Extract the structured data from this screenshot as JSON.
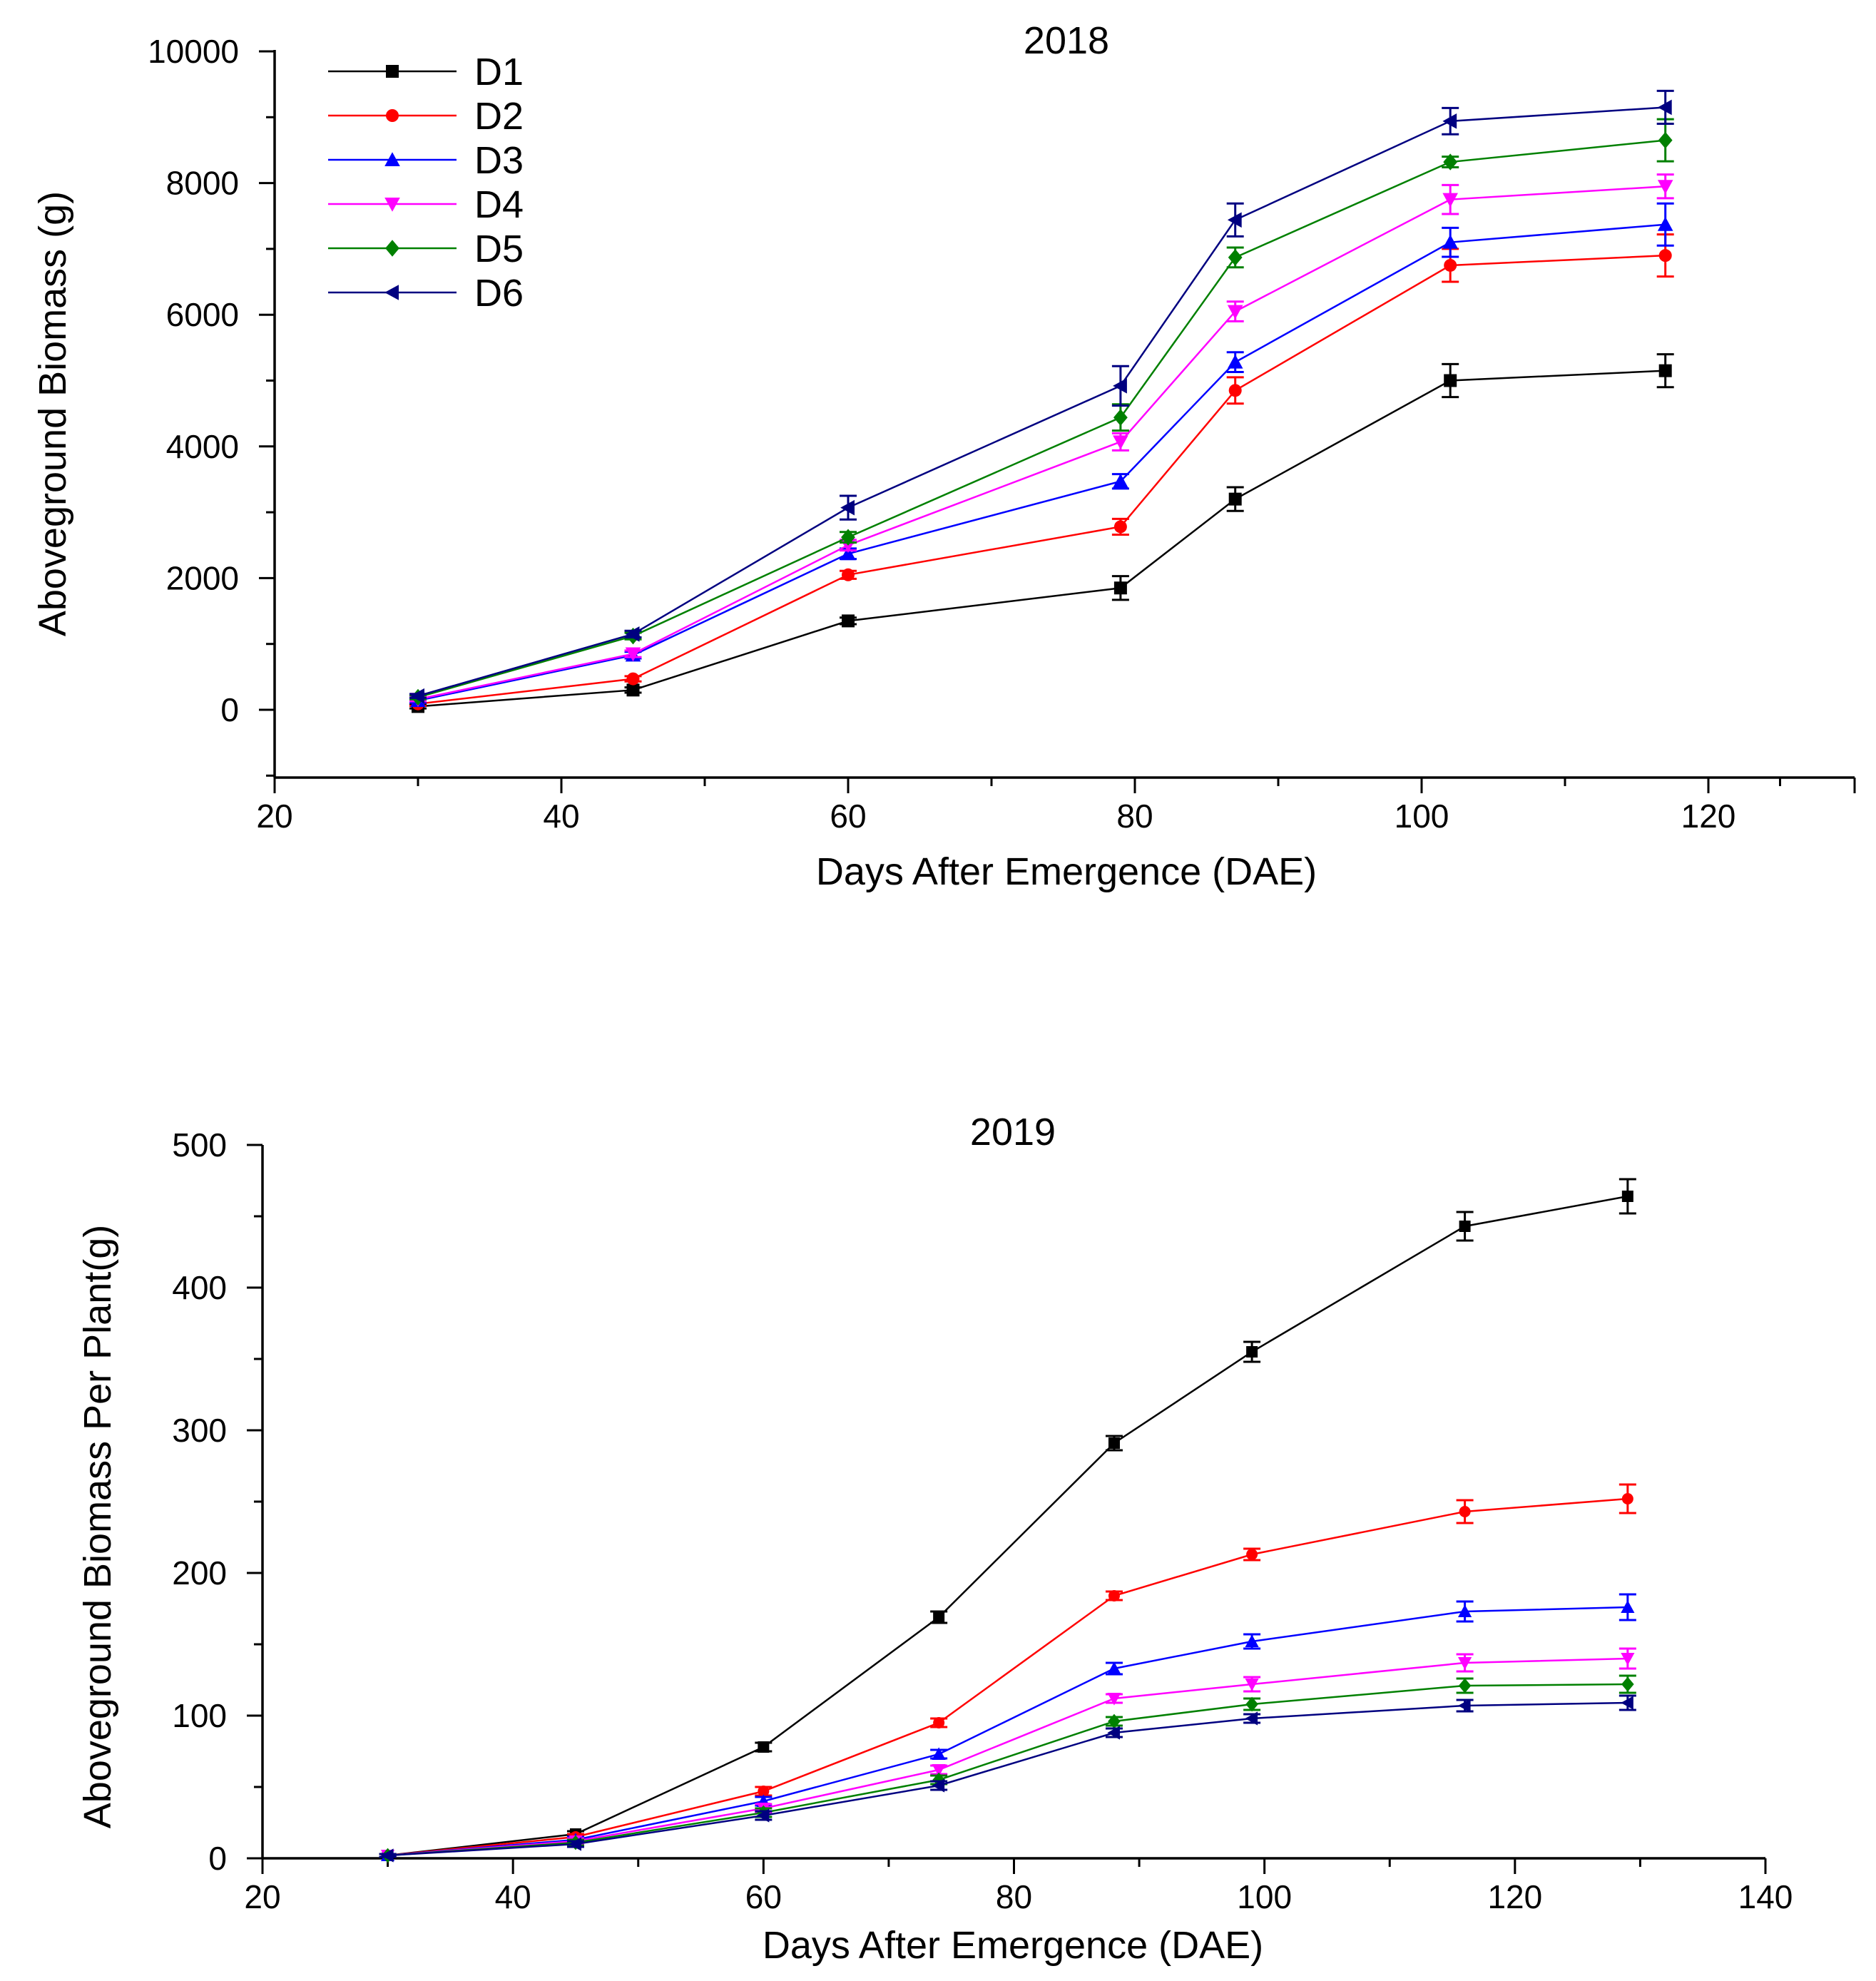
{
  "chart_data": [
    {
      "type": "line",
      "title": "2018",
      "xlabel": "Days After Emergence (DAE)",
      "ylabel": "Aboveground Biomass (g)",
      "xlim": [
        20,
        130
      ],
      "ylim": [
        -1000,
        10000
      ],
      "xticks": [
        20,
        40,
        60,
        80,
        100,
        120
      ],
      "yticks": [
        0,
        2000,
        4000,
        6000,
        8000,
        10000
      ],
      "x": [
        30,
        45,
        60,
        79,
        87,
        102,
        117
      ],
      "legend": "top-left",
      "series": [
        {
          "name": "D1",
          "color": "#000000",
          "marker": "square",
          "values": [
            50,
            300,
            1350,
            1850,
            3200,
            5000,
            5150
          ],
          "errors": [
            30,
            40,
            50,
            180,
            180,
            250,
            250
          ]
        },
        {
          "name": "D2",
          "color": "#ff0000",
          "marker": "circle",
          "values": [
            90,
            470,
            2050,
            2780,
            4850,
            6750,
            6900
          ],
          "errors": [
            30,
            40,
            60,
            120,
            200,
            250,
            320
          ]
        },
        {
          "name": "D3",
          "color": "#0000ff",
          "marker": "triangle-up",
          "values": [
            140,
            830,
            2370,
            3470,
            5280,
            7100,
            7370
          ],
          "errors": [
            30,
            50,
            80,
            110,
            150,
            220,
            320
          ]
        },
        {
          "name": "D4",
          "color": "#ff00ff",
          "marker": "triangle-down",
          "values": [
            160,
            850,
            2500,
            4070,
            6050,
            7750,
            7950
          ],
          "errors": [
            30,
            50,
            80,
            130,
            150,
            220,
            180
          ]
        },
        {
          "name": "D5",
          "color": "#008000",
          "marker": "diamond",
          "values": [
            190,
            1120,
            2620,
            4440,
            6870,
            8320,
            8650
          ],
          "errors": [
            30,
            50,
            80,
            200,
            150,
            80,
            320
          ]
        },
        {
          "name": "D6",
          "color": "#000080",
          "marker": "triangle-left",
          "values": [
            210,
            1150,
            3070,
            4920,
            7440,
            8940,
            9150
          ],
          "errors": [
            30,
            50,
            180,
            300,
            250,
            200,
            250
          ]
        }
      ]
    },
    {
      "type": "line",
      "title": "2019",
      "xlabel": "Days After Emergence (DAE)",
      "ylabel": "Aboveground Biomass Per Plant(g)",
      "xlim": [
        20,
        140
      ],
      "ylim": [
        0,
        500
      ],
      "xticks": [
        20,
        40,
        60,
        80,
        100,
        120,
        140
      ],
      "yticks": [
        0,
        100,
        200,
        300,
        400,
        500
      ],
      "x": [
        30,
        45,
        60,
        74,
        88,
        99,
        116,
        129
      ],
      "series": [
        {
          "color": "#000000",
          "marker": "square",
          "values": [
            2,
            17,
            78,
            169,
            291,
            355,
            443,
            464
          ],
          "errors": [
            1,
            2,
            3,
            4,
            5,
            7,
            10,
            12
          ]
        },
        {
          "color": "#ff0000",
          "marker": "circle",
          "values": [
            2,
            15,
            47,
            95,
            184,
            213,
            243,
            252
          ],
          "errors": [
            1,
            2,
            3,
            3,
            3,
            4,
            8,
            10
          ]
        },
        {
          "color": "#0000ff",
          "marker": "triangle-up",
          "values": [
            2,
            13,
            40,
            73,
            133,
            152,
            173,
            176
          ],
          "errors": [
            1,
            2,
            3,
            3,
            4,
            5,
            7,
            9
          ]
        },
        {
          "color": "#ff00ff",
          "marker": "triangle-down",
          "values": [
            2,
            12,
            35,
            62,
            112,
            122,
            137,
            140
          ],
          "errors": [
            1,
            2,
            3,
            3,
            3,
            5,
            6,
            7
          ]
        },
        {
          "color": "#008000",
          "marker": "diamond",
          "values": [
            2,
            11,
            32,
            55,
            96,
            108,
            121,
            122
          ],
          "errors": [
            1,
            2,
            3,
            3,
            3,
            4,
            5,
            6
          ]
        },
        {
          "color": "#000080",
          "marker": "triangle-left",
          "values": [
            2,
            10,
            30,
            51,
            88,
            98,
            107,
            109
          ],
          "errors": [
            1,
            2,
            3,
            3,
            3,
            3,
            4,
            5
          ]
        }
      ]
    }
  ]
}
